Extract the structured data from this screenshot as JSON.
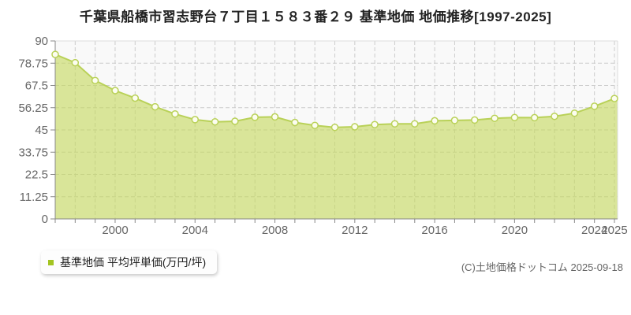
{
  "title": "千葉県船橋市習志野台７丁目１５８３番２９ 基準地価 地価推移[1997-2025]",
  "legend": {
    "label": "基準地価 平均坪単価(万円/坪)"
  },
  "footer": {
    "copyright": "(C)土地価格ドットコム 2025-09-18"
  },
  "colors": {
    "line": "#b9d158",
    "area_fill": "rgba(197,217,94,0.62)",
    "marker_fill": "#fcfdf0",
    "legend_marker": "#a3c421",
    "gridline": "#cccccc",
    "plot_background": "#f9f9f9",
    "axis": "#888888",
    "spine_light": "#dddddd",
    "tick_label": "#666666"
  },
  "chart_data": {
    "type": "area",
    "title": "千葉県船橋市習志野台７丁目１５８３番２９ 基準地価 地価推移[1997-2025]",
    "series_name": "基準地価 平均坪単価(万円/坪)",
    "x": [
      1997,
      1998,
      1999,
      2000,
      2001,
      2002,
      2003,
      2004,
      2005,
      2006,
      2007,
      2008,
      2009,
      2010,
      2011,
      2012,
      2013,
      2014,
      2015,
      2016,
      2017,
      2018,
      2019,
      2020,
      2021,
      2022,
      2023,
      2024,
      2025
    ],
    "values": [
      83.2,
      79.0,
      70.0,
      64.9,
      61.1,
      56.7,
      53.1,
      50.2,
      49.1,
      49.4,
      51.4,
      51.6,
      48.8,
      47.3,
      46.3,
      46.6,
      47.7,
      48.1,
      48.1,
      49.6,
      49.8,
      50.0,
      50.9,
      51.3,
      51.2,
      51.9,
      53.5,
      57.0,
      60.9
    ],
    "ylim": [
      0,
      90
    ],
    "yticks": [
      0,
      11.25,
      22.5,
      33.75,
      45,
      56.25,
      67.5,
      78.75,
      90
    ],
    "xtick_labels": [
      "2000",
      "2004",
      "2008",
      "2012",
      "2016",
      "2020",
      "2024",
      "2025"
    ],
    "xtick_label_years": [
      2000,
      2004,
      2008,
      2012,
      2016,
      2020,
      2024,
      2025
    ],
    "grid": true,
    "legend_position": "bottom-left"
  }
}
